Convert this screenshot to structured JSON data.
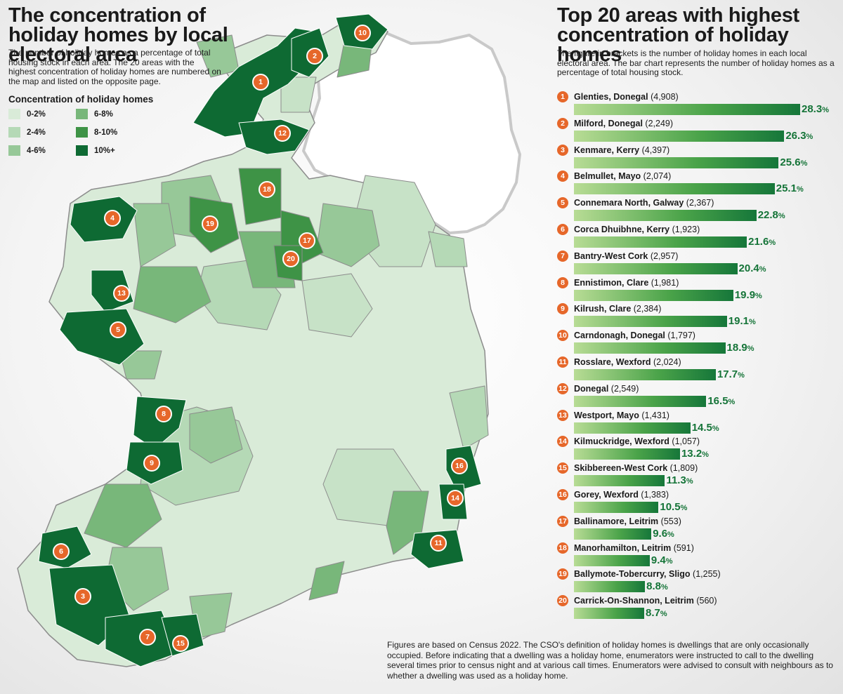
{
  "left": {
    "title": "The concentration of holiday homes by local electoral area",
    "subtitle": "The number of holiday homes as a percentage of total housing stock in each area. The 20 areas with the highest concentration of holiday homes are numbered on the map and listed on the opposite page."
  },
  "legend": {
    "title": "Concentration of holiday homes",
    "items": [
      {
        "label": "0-2%",
        "color": "#d9ebd8"
      },
      {
        "label": "6-8%",
        "color": "#78b77a"
      },
      {
        "label": "2-4%",
        "color": "#b5d9b6"
      },
      {
        "label": "8-10%",
        "color": "#3e9346"
      },
      {
        "label": "4-6%",
        "color": "#97c898"
      },
      {
        "label": "10%+",
        "color": "#0e6a33"
      }
    ]
  },
  "right": {
    "title": "Top 20 areas with highest concentration of holiday homes",
    "subtitle": "The figure in brackets is the number of holiday homes in each local electoral area. The bar chart represents the number of holiday homes as a percentage of total housing stock."
  },
  "chart_data": {
    "type": "bar",
    "orientation": "horizontal",
    "unit": "%",
    "xlim": [
      0,
      28.3
    ],
    "items": [
      {
        "rank": "1",
        "area": "Glenties, Donegal",
        "homes": "(4,908)",
        "value": 28.3
      },
      {
        "rank": "2",
        "area": "Milford, Donegal",
        "homes": "(2,249)",
        "value": 26.3
      },
      {
        "rank": "3",
        "area": "Kenmare, Kerry",
        "homes": "(4,397)",
        "value": 25.6
      },
      {
        "rank": "4",
        "area": "Belmullet, Mayo",
        "homes": "(2,074)",
        "value": 25.1
      },
      {
        "rank": "5",
        "area": "Connemara North, Galway",
        "homes": "(2,367)",
        "value": 22.8
      },
      {
        "rank": "6",
        "area": "Corca Dhuibhne, Kerry",
        "homes": "(1,923)",
        "value": 21.6
      },
      {
        "rank": "7",
        "area": "Bantry-West Cork",
        "homes": "(2,957)",
        "value": 20.4
      },
      {
        "rank": "8",
        "area": "Ennistimon, Clare",
        "homes": "(1,981)",
        "value": 19.9
      },
      {
        "rank": "9",
        "area": "Kilrush, Clare",
        "homes": "(2,384)",
        "value": 19.1
      },
      {
        "rank": "10",
        "area": "Carndonagh, Donegal",
        "homes": "(1,797)",
        "value": 18.9
      },
      {
        "rank": "11",
        "area": "Rosslare, Wexford",
        "homes": "(2,024)",
        "value": 17.7
      },
      {
        "rank": "12",
        "area": "Donegal",
        "homes": "(2,549)",
        "value": 16.5
      },
      {
        "rank": "13",
        "area": "Westport, Mayo",
        "homes": "(1,431)",
        "value": 14.5
      },
      {
        "rank": "14",
        "area": "Kilmuckridge, Wexford",
        "homes": "(1,057)",
        "value": 13.2
      },
      {
        "rank": "15",
        "area": "Skibbereen-West Cork",
        "homes": "(1,809)",
        "value": 11.3
      },
      {
        "rank": "16",
        "area": "Gorey, Wexford",
        "homes": "(1,383)",
        "value": 10.5
      },
      {
        "rank": "17",
        "area": "Ballinamore, Leitrim",
        "homes": "(553)",
        "value": 9.6
      },
      {
        "rank": "18",
        "area": "Manorhamilton, Leitrim",
        "homes": "(591)",
        "value": 9.4
      },
      {
        "rank": "19",
        "area": "Ballymote-Tobercurry, Sligo",
        "homes": "(1,255)",
        "value": 8.8
      },
      {
        "rank": "20",
        "area": "Carrick-On-Shannon, Leitrim",
        "homes": "(560)",
        "value": 8.7
      }
    ]
  },
  "map": {
    "markers": [
      "1",
      "2",
      "3",
      "4",
      "5",
      "6",
      "7",
      "8",
      "9",
      "10",
      "11",
      "12",
      "13",
      "14",
      "15",
      "16",
      "17",
      "18",
      "19",
      "20"
    ]
  },
  "footnote": "Figures are based on Census 2022. The CSO's definition of holiday homes is dwellings that are only occasionally occupied.  Before indicating that a dwelling was a holiday home, enumerators were instructed to call to the dwelling several times prior to census night and at various call times.  Enumerators were advised to consult with neighbours as to whether a dwelling was used as a holiday home."
}
